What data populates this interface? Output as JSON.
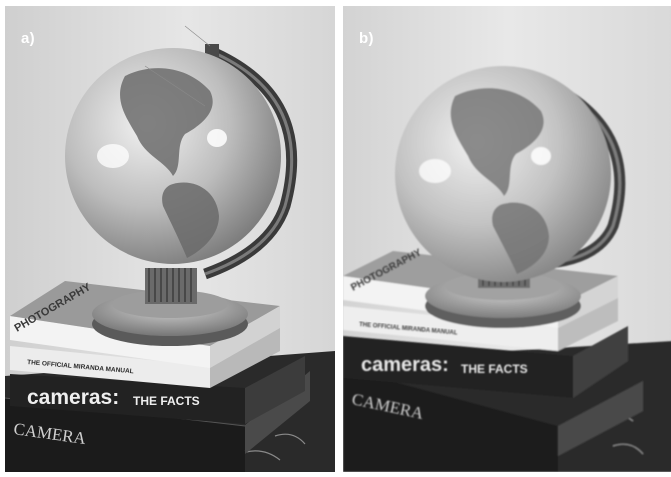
{
  "panels": [
    {
      "label": "a)"
    },
    {
      "label": "b)"
    }
  ],
  "books": {
    "top_spine": "PHOTOGRAPHY",
    "manual_title": "THE OFFICIAL MIRANDA MANUAL",
    "cameras_big": "cameras:",
    "cameras_small": "THE FACTS",
    "camera_book": "CAMERA"
  },
  "colors": {
    "wall_light": "#e3e3e3",
    "wall_dark": "#c6c6c6",
    "globe_light": "#efefef",
    "globe_dark": "#8a8a8a",
    "stand": "#3a3a3a",
    "book_dark": "#1e1e1e",
    "table": "#262626"
  }
}
